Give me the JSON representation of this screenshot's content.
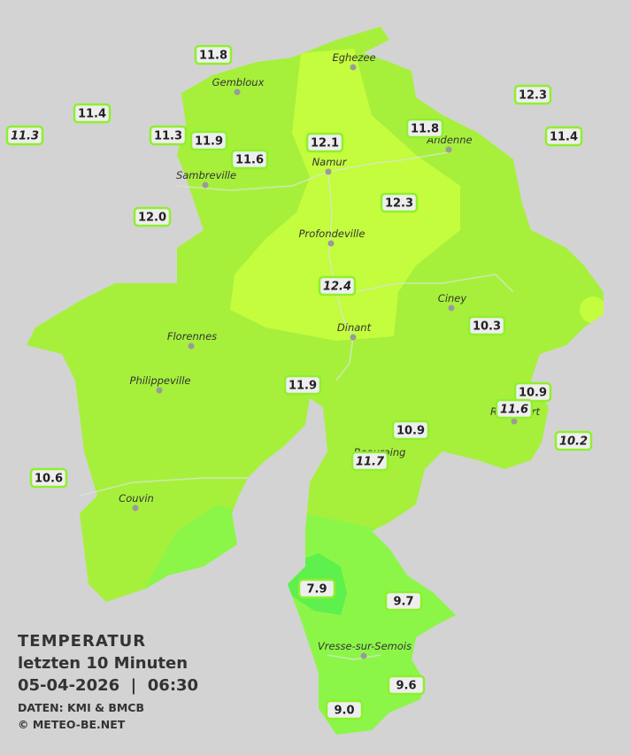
{
  "cities": [
    "Eghezee",
    "Gembloux",
    "Namur",
    "Andenne",
    "Sambreville",
    "Profondeville",
    "Ciney",
    "Dinant",
    "Florennes",
    "Philippeville",
    "Rochefort",
    "Beauraing",
    "Couvin",
    "Vresse-sur-Semois"
  ],
  "stations": [
    "11.8",
    "11.4",
    "11.3",
    "11.3",
    "11.9",
    "11.6",
    "12.1",
    "11.8",
    "12.3",
    "11.4",
    "12.0",
    "12.3",
    "12.4",
    "10.3",
    "11.9",
    "10.9",
    "11.6",
    "10.9",
    "11.7",
    "10.2",
    "10.6",
    "7.9",
    "9.7",
    "9.6",
    "9.0"
  ],
  "info": {
    "title": "TEMPERATUR",
    "subtitle": "letzten 10 Minuten",
    "datetime": "05-04-2026  |  06:30",
    "source": "DATEN: KMI & BMCB",
    "copyright": "© METEO-BE.NET"
  }
}
